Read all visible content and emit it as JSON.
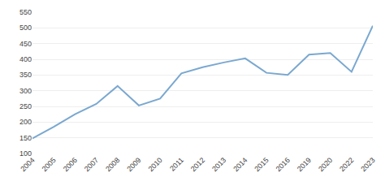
{
  "chart_data": {
    "type": "line",
    "categories": [
      "2004",
      "2005",
      "2006",
      "2007",
      "2008",
      "2009",
      "2010",
      "2011",
      "2012",
      "2013",
      "2014",
      "2015",
      "2016",
      "2019",
      "2020",
      "2022",
      "2023"
    ],
    "values": [
      148,
      185,
      225,
      258,
      315,
      253,
      275,
      355,
      375,
      390,
      403,
      357,
      350,
      415,
      420,
      360,
      507
    ],
    "color": "#7aa8d0",
    "ylim": [
      100,
      550
    ],
    "yticks": [
      100,
      150,
      200,
      250,
      300,
      350,
      400,
      450,
      500,
      550
    ],
    "grid": true
  }
}
